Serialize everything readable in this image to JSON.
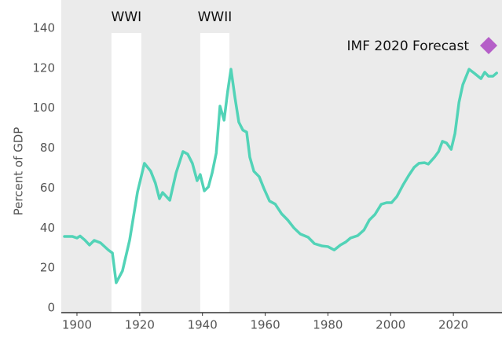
{
  "chart_data": {
    "type": "line",
    "y_label": "Percent of GDP",
    "xlim": [
      1895,
      2035.5
    ],
    "ylim": [
      0,
      140
    ],
    "xticks": [
      1900,
      1920,
      1940,
      1960,
      1980,
      2000,
      2020
    ],
    "yticks": [
      0,
      20,
      40,
      60,
      80,
      100,
      120,
      140
    ],
    "bands": [
      {
        "label": "WWI",
        "start": 1911,
        "end": 1920.5
      },
      {
        "label": "WWII",
        "start": 1939.3,
        "end": 1948.6
      }
    ],
    "legend": {
      "label": "IMF 2020 Forecast",
      "color": "#b55fc8"
    },
    "series": [
      {
        "color": "#52d3b7",
        "x": [
          1896,
          1898.5,
          1900,
          1901,
          1902.5,
          1904,
          1905.5,
          1907.5,
          1910,
          1911.3,
          1912.5,
          1914.5,
          1916.8,
          1919.3,
          1921.5,
          1923.5,
          1925,
          1926.3,
          1927.3,
          1929.6,
          1931.6,
          1933.8,
          1935.3,
          1936.8,
          1938.3,
          1939.3,
          1940.6,
          1941.9,
          1943.1,
          1944.4,
          1945.6,
          1946.9,
          1948.1,
          1949.1,
          1950.4,
          1951.6,
          1952.9,
          1954.1,
          1955.1,
          1956.4,
          1958.1,
          1959.6,
          1961.4,
          1963.2,
          1965.2,
          1967.2,
          1969.2,
          1971.2,
          1973.7,
          1975.7,
          1978.2,
          1980,
          1982,
          1984,
          1985.7,
          1987.2,
          1989.5,
          1991.5,
          1993.2,
          1995,
          1997,
          1998.7,
          2000.3,
          2002,
          2004,
          2005.8,
          2007.5,
          2009,
          2010.8,
          2012,
          2014,
          2015.3,
          2016.5,
          2017.8,
          2019.3,
          2020.5,
          2021.8,
          2023,
          2025,
          2026.6,
          2028.8,
          2030,
          2031.2,
          2032.6,
          2033.8
        ],
        "values": [
          35.8,
          35.8,
          35,
          36,
          34,
          31.5,
          33.8,
          32.6,
          29,
          27.5,
          12.6,
          18.5,
          34,
          58,
          72.4,
          68.5,
          62.5,
          54.7,
          57.8,
          53.9,
          67.6,
          78.3,
          77,
          72.4,
          63.7,
          66.8,
          58.6,
          60.6,
          67.6,
          77.5,
          101,
          94,
          109,
          119.5,
          105,
          93,
          89,
          88,
          75.5,
          68.4,
          65.7,
          59.8,
          53.5,
          52,
          47.2,
          44,
          40,
          37,
          35.4,
          32.2,
          31,
          30.7,
          29,
          31.5,
          33,
          35,
          36.2,
          39,
          44,
          46.8,
          51.9,
          52.7,
          52.7,
          55.8,
          61.7,
          66.4,
          70.4,
          72.4,
          72.7,
          72,
          75.5,
          78.3,
          83.4,
          82.6,
          79.4,
          87.3,
          103,
          111.7,
          119.5,
          117.6,
          114.8,
          118,
          116,
          116,
          117.6
        ]
      }
    ]
  }
}
